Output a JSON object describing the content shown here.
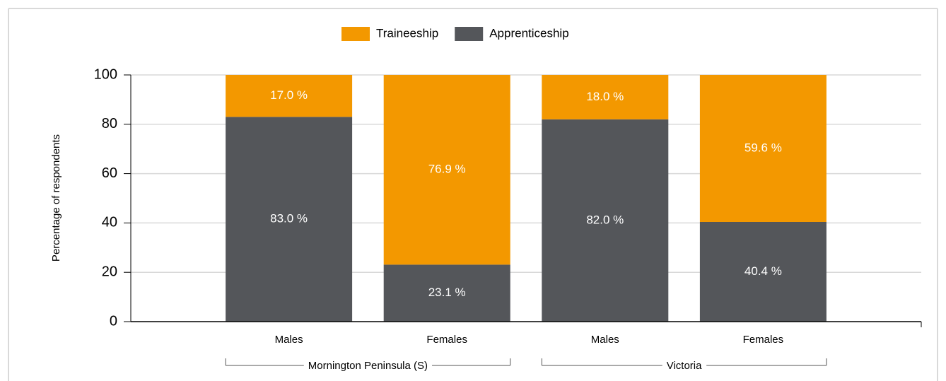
{
  "chart_data": {
    "type": "stacked_bar",
    "y_label": "Percentage of respondents",
    "categories": [
      "Males",
      "Females",
      "Males",
      "Females"
    ],
    "groups": [
      "Mornington Peninsula (S)",
      "Victoria"
    ],
    "series": [
      {
        "name": "Traineeship",
        "color": "#f39800",
        "values": [
          17.0,
          76.9,
          18.0,
          59.6
        ],
        "value_labels": [
          "17.0 %",
          "76.9 %",
          "18.0 %",
          "59.6 %"
        ]
      },
      {
        "name": "Apprenticeship",
        "color": "#54565a",
        "values": [
          83.0,
          23.1,
          82.0,
          40.4
        ],
        "value_labels": [
          "83.0 %",
          "23.1 %",
          "82.0 %",
          "40.4 %"
        ]
      }
    ],
    "ylim": [
      0,
      100
    ],
    "yticks": [
      0,
      20,
      40,
      60,
      80,
      100
    ],
    "grid": true,
    "legend": "top"
  }
}
